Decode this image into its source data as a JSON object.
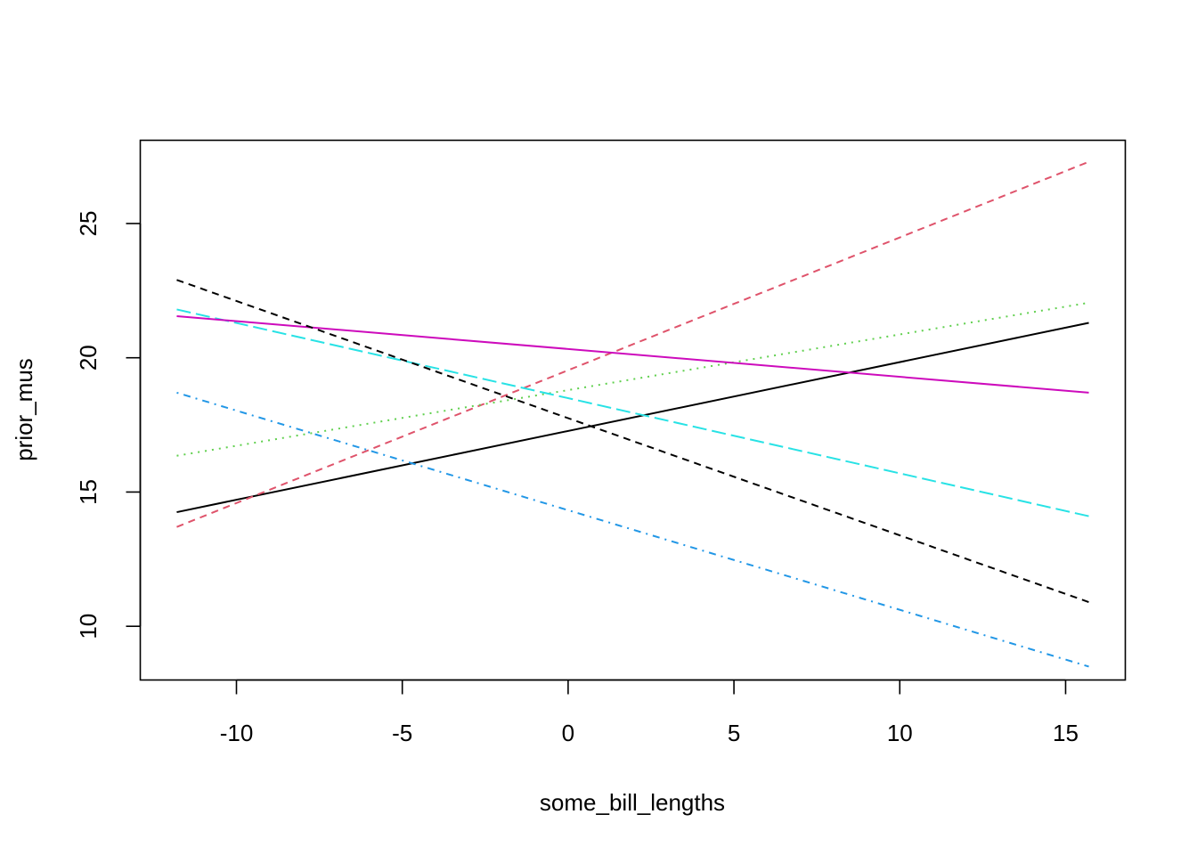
{
  "chart_data": {
    "type": "line",
    "title": "",
    "xlabel": "some_bill_lengths",
    "ylabel": "prior_mus",
    "xlim": [
      -12.9,
      16.8
    ],
    "ylim": [
      8.0,
      28.1
    ],
    "x_ticks": [
      -10,
      -5,
      0,
      5,
      10,
      15
    ],
    "x_tick_labels": [
      "-10",
      "-5",
      "0",
      "5",
      "10",
      "15"
    ],
    "y_ticks": [
      10,
      15,
      20,
      25
    ],
    "y_tick_labels": [
      "10",
      "15",
      "20",
      "25"
    ],
    "grid": false,
    "legend": "none",
    "series": [
      {
        "color": "#000000",
        "line_style": "solid",
        "x": [
          -11.8,
          15.7
        ],
        "y": [
          14.25,
          21.3
        ]
      },
      {
        "color": "#DF536B",
        "line_style": "dashed",
        "x": [
          -11.8,
          15.7
        ],
        "y": [
          13.7,
          27.3
        ]
      },
      {
        "color": "#61D04F",
        "line_style": "dotted",
        "x": [
          -11.8,
          15.7
        ],
        "y": [
          16.35,
          22.05
        ]
      },
      {
        "color": "#2297E6",
        "line_style": "dotdash",
        "x": [
          -11.8,
          15.7
        ],
        "y": [
          18.7,
          8.5
        ]
      },
      {
        "color": "#28E2E5",
        "line_style": "longdash",
        "x": [
          -11.8,
          15.7
        ],
        "y": [
          21.8,
          14.1
        ]
      },
      {
        "color": "#CD0BBC",
        "line_style": "solid",
        "x": [
          -11.8,
          15.7
        ],
        "y": [
          21.55,
          18.7
        ]
      },
      {
        "color": "#000000",
        "line_style": "dashed",
        "x": [
          -11.8,
          15.7
        ],
        "y": [
          22.9,
          10.9
        ]
      }
    ]
  }
}
